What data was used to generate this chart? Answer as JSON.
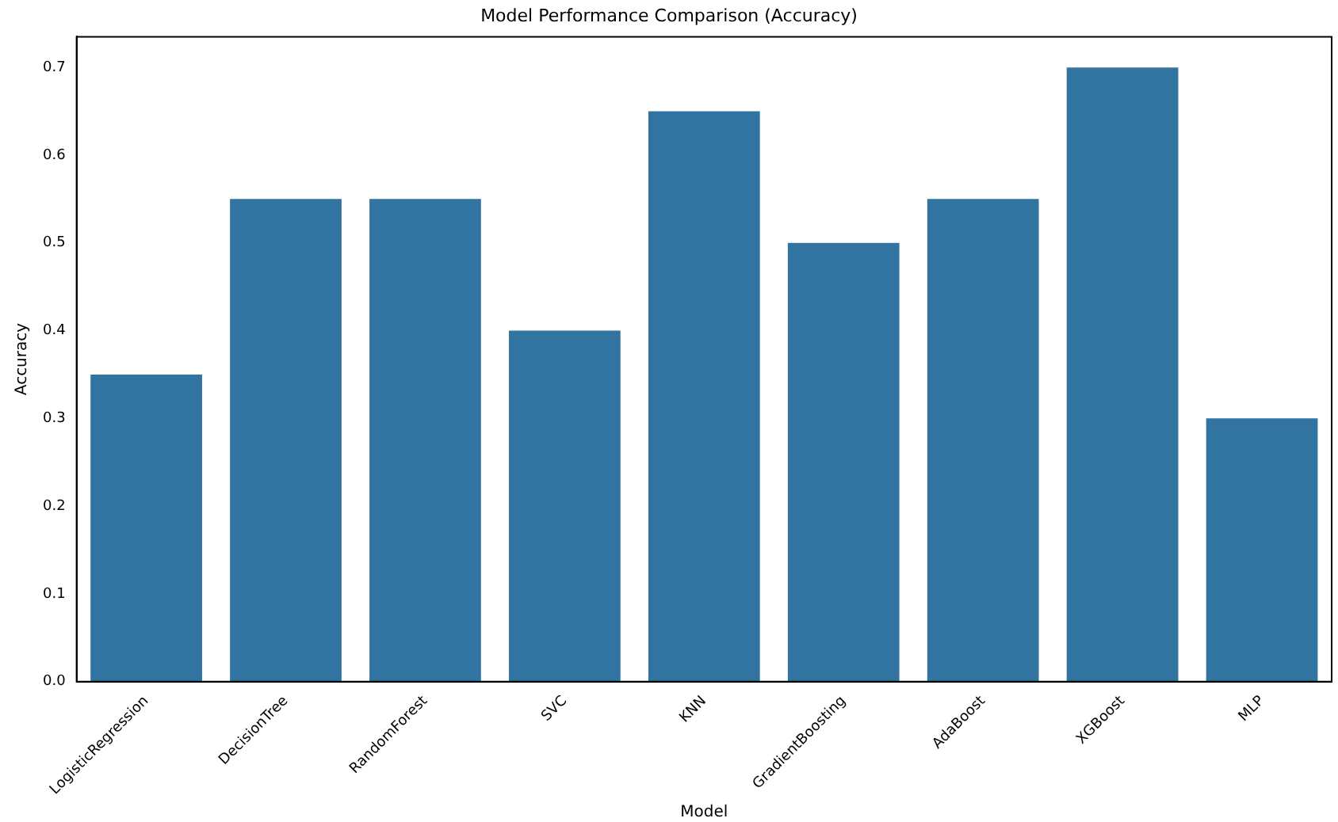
{
  "chart_data": {
    "type": "bar",
    "title": "Model Performance Comparison (Accuracy)",
    "xlabel": "Model",
    "ylabel": "Accuracy",
    "categories": [
      "LogisticRegression",
      "DecisionTree",
      "RandomForest",
      "SVC",
      "KNN",
      "GradientBoosting",
      "AdaBoost",
      "XGBoost",
      "MLP"
    ],
    "values": [
      0.35,
      0.55,
      0.55,
      0.4,
      0.65,
      0.5,
      0.55,
      0.7,
      0.3
    ],
    "color": "#3274a1",
    "ylim": [
      0,
      0.735
    ],
    "yticks": [
      {
        "value": 0,
        "label": "0.0"
      },
      0.1,
      0.2,
      0.3,
      0.4,
      0.5,
      0.6,
      0.7
    ],
    "grid": false,
    "legend": false
  }
}
